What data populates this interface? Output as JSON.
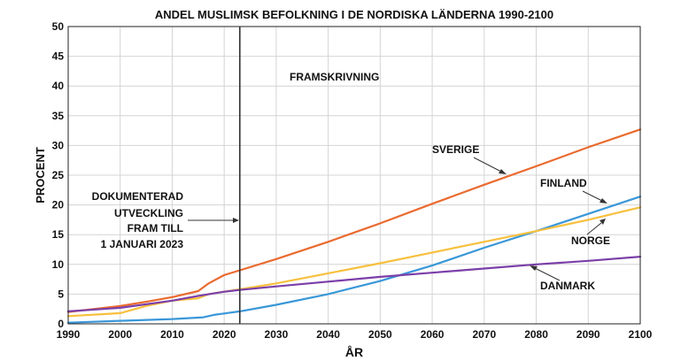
{
  "chart_data": {
    "type": "line",
    "title": "ANDEL MUSLIMSK BEFOLKNING I DE NORDISKA LÄNDERNA 1990-2100",
    "xlabel": "ÅR",
    "ylabel": "PROCENT",
    "xlim": [
      1990,
      2100
    ],
    "ylim": [
      0,
      50
    ],
    "xticks": [
      "1990",
      "2000",
      "2010",
      "2020",
      "2030",
      "2040",
      "2050",
      "2060",
      "2070",
      "2080",
      "2090",
      "2100"
    ],
    "yticks": [
      "0",
      "5",
      "10",
      "15",
      "20",
      "25",
      "30",
      "35",
      "40",
      "45",
      "50"
    ],
    "grid": true,
    "vline_year": 2023,
    "annotations": {
      "projection": "FRAMSKRIVNING",
      "documented": [
        "DOKUMENTERAD",
        "UTVECKLING",
        "FRAM TILL",
        "1 JANUARI 2023"
      ]
    },
    "series": [
      {
        "name": "SVERIGE",
        "color": "#ea6a2f",
        "x": [
          1990,
          2000,
          2005,
          2010,
          2015,
          2017,
          2020,
          2023,
          2030,
          2040,
          2050,
          2060,
          2070,
          2080,
          2090,
          2100
        ],
        "y": [
          2.0,
          3.0,
          3.7,
          4.5,
          5.5,
          6.8,
          8.2,
          9.0,
          10.9,
          13.8,
          16.9,
          20.2,
          23.4,
          26.5,
          29.7,
          32.7
        ]
      },
      {
        "name": "FINLAND",
        "color": "#3a97d8",
        "x": [
          1990,
          2000,
          2010,
          2016,
          2018,
          2023,
          2030,
          2040,
          2050,
          2060,
          2070,
          2080,
          2090,
          2100
        ],
        "y": [
          0.2,
          0.5,
          0.8,
          1.1,
          1.5,
          2.1,
          3.2,
          5.0,
          7.2,
          9.8,
          12.8,
          15.6,
          18.5,
          21.4
        ]
      },
      {
        "name": "NORGE",
        "color": "#f7c03e",
        "x": [
          1990,
          2000,
          2005,
          2010,
          2015,
          2017,
          2020,
          2023,
          2030,
          2040,
          2050,
          2060,
          2070,
          2080,
          2090,
          2100
        ],
        "y": [
          1.3,
          1.8,
          3.0,
          3.9,
          4.3,
          5.0,
          5.4,
          5.8,
          6.8,
          8.5,
          10.2,
          12.0,
          13.8,
          15.6,
          17.5,
          19.6
        ]
      },
      {
        "name": "DANMARK",
        "color": "#7b3fa8",
        "x": [
          1990,
          2000,
          2010,
          2015,
          2020,
          2023,
          2030,
          2040,
          2050,
          2060,
          2070,
          2080,
          2090,
          2100
        ],
        "y": [
          2.1,
          2.7,
          3.9,
          4.7,
          5.4,
          5.7,
          6.3,
          7.1,
          7.9,
          8.6,
          9.3,
          10.0,
          10.6,
          11.3
        ]
      }
    ]
  }
}
